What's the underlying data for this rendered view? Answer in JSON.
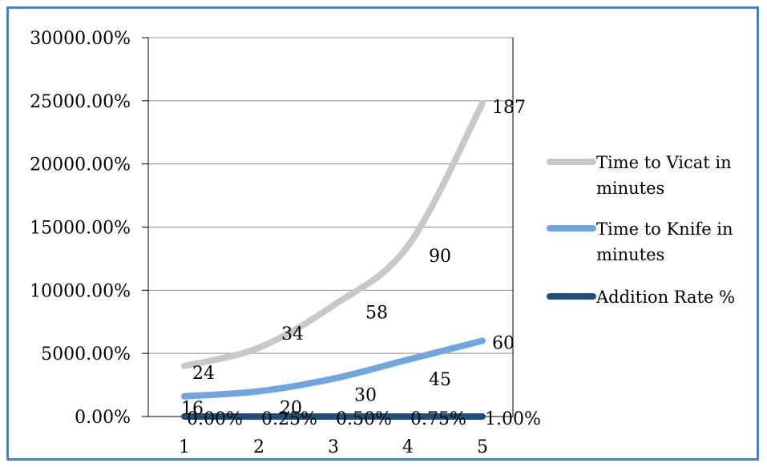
{
  "chart_data": {
    "type": "line",
    "title": "",
    "xlabel": "",
    "ylabel": "",
    "x": [
      1,
      2,
      3,
      4,
      5
    ],
    "ylim": [
      0,
      30000
    ],
    "y_ticks": [
      "0.00%",
      "5000.00%",
      "10000.00%",
      "15000.00%",
      "20000.00%",
      "25000.00%",
      "30000.00%"
    ],
    "x_ticks": [
      "1",
      "2",
      "3",
      "4",
      "5"
    ],
    "grid": true,
    "legend_position": "right",
    "series": [
      {
        "name": "Time to Vicat in minutes",
        "legend_lines": [
          "Time to Vicat in",
          "minutes"
        ],
        "color": "#c8c8c8",
        "values": [
          4000,
          5450,
          8800,
          13500,
          24800
        ],
        "labels": [
          "24",
          "34",
          "58",
          "90",
          "187"
        ]
      },
      {
        "name": "Time to Knife in minutes",
        "legend_lines": [
          "Time to Knife in",
          "minutes"
        ],
        "color": "#6fa6df",
        "values": [
          1600,
          2000,
          3000,
          4500,
          6000
        ],
        "labels": [
          "16",
          "20",
          "30",
          "45",
          "60"
        ]
      },
      {
        "name": "Addition Rate %",
        "legend_lines": [
          "Addition Rate %"
        ],
        "color": "#1f4e79",
        "values": [
          0,
          0.25,
          0.5,
          0.75,
          1
        ],
        "labels": [
          "0.00%",
          "0.25%",
          "0.50%",
          "0.75%",
          "1.00%"
        ]
      }
    ]
  }
}
